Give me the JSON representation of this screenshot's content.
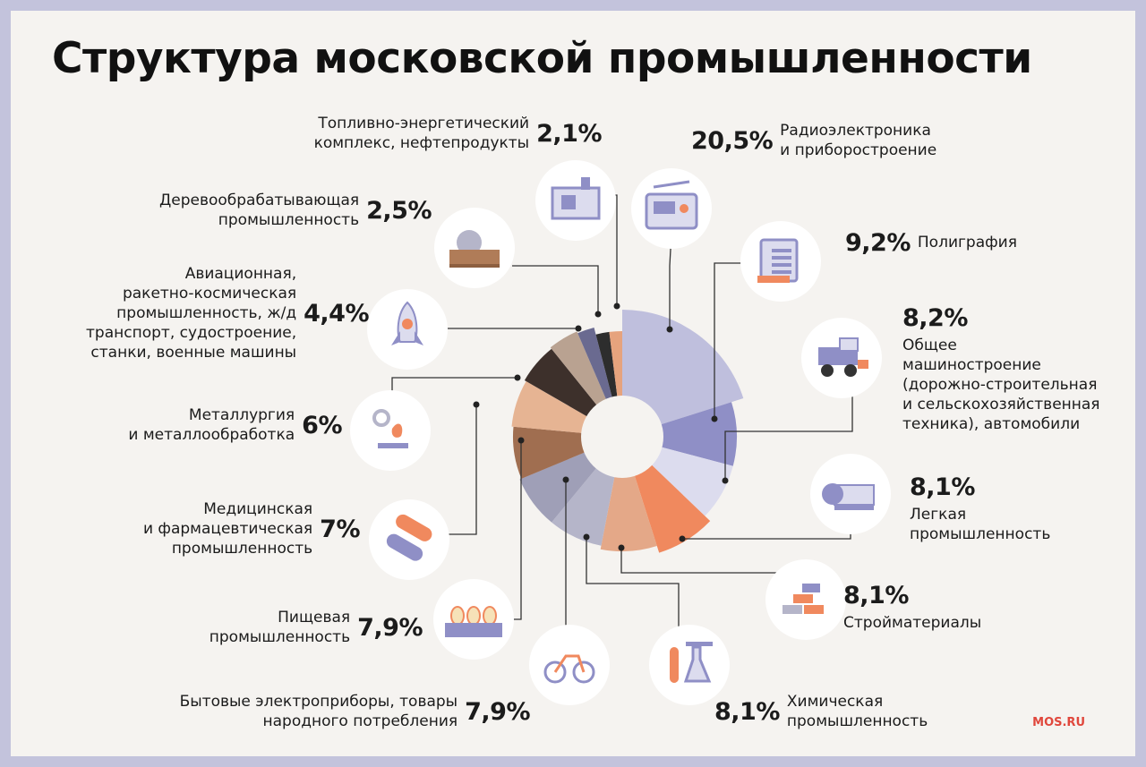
{
  "chart_data": {
    "type": "pie",
    "title": "Структура московской промышленности",
    "start_angle_deg": 0,
    "slices": [
      {
        "label": "Радиоэлектроника\nи приборостроение",
        "value": 20.5,
        "display": "20,5%",
        "color": "#bfbfdd",
        "icon": "radio-icon"
      },
      {
        "label": "Полиграфия",
        "value": 9.2,
        "display": "9,2%",
        "color": "#8f8fc6",
        "icon": "book-icon"
      },
      {
        "label": "Общее\nмашиностроение\n(дорожно-строительная\nи сельскохозяйственная\nтехника), автомобили",
        "value": 8.2,
        "display": "8,2%",
        "color": "#dcdcee",
        "icon": "harvester-icon"
      },
      {
        "label": "Легкая\nпромышленность",
        "value": 8.1,
        "display": "8,1%",
        "color": "#f0895e",
        "icon": "fabric-roll-icon"
      },
      {
        "label": "Стройматериалы",
        "value": 8.1,
        "display": "8,1%",
        "color": "#e4a888",
        "icon": "bricks-icon"
      },
      {
        "label": "Химическая\nпромышленность",
        "value": 8.1,
        "display": "8,1%",
        "color": "#b5b5c9",
        "icon": "flask-icon"
      },
      {
        "label": "Бытовые электроприборы, товары\nнародного потребления",
        "value": 7.9,
        "display": "7,9%",
        "color": "#9f9fb7",
        "icon": "bicycle-icon"
      },
      {
        "label": "Пищевая\nпромышленность",
        "value": 7.9,
        "display": "7,9%",
        "color": "#a06e50",
        "icon": "eggs-icon"
      },
      {
        "label": "Медицинская\nи фармацевтическая\nпромышленность",
        "value": 7.0,
        "display": "7%",
        "color": "#e6b493",
        "icon": "pill-icon"
      },
      {
        "label": "Металлургия\nи металлообработка",
        "value": 6.0,
        "display": "6%",
        "color": "#3d302b",
        "icon": "furnace-icon"
      },
      {
        "label": "Авиационная,\nракетно-космическая\nпромышленность, ж/д\nтранспорт, судостроение,\nстанки, военные машины",
        "value": 4.4,
        "display": "4,4%",
        "color": "#b9a291",
        "icon": "rocket-icon"
      },
      {
        "label": "Деревообрабатывающая\nпромышленность",
        "value": 2.5,
        "display": "2,5%",
        "color": "#6a6a90",
        "icon": "saw-icon"
      },
      {
        "label": "Топливно-энергетический\nкомплекс, нефтепродукты",
        "value": 2.1,
        "display": "2,1%",
        "color": "#2d2d2d",
        "icon": "generator-icon"
      },
      {
        "label": "",
        "value": 2.0,
        "display": "",
        "color": "#e6a37d",
        "icon": ""
      }
    ]
  },
  "brand": "MOS.RU"
}
